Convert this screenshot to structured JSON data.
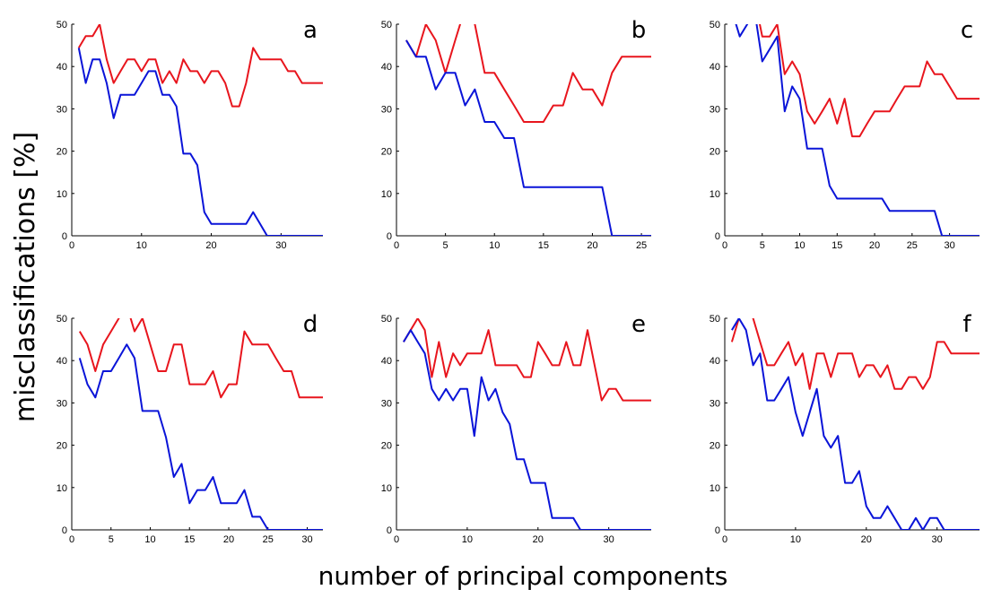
{
  "figure": {
    "xlabel": "number of principal components",
    "ylabel": "misclassifications [%]",
    "colors": {
      "red_series": "#e8151d",
      "blue_series": "#0a14d8"
    }
  },
  "chart_data": [
    {
      "type": "line",
      "label": "a",
      "xlim": [
        0,
        36
      ],
      "ylim": [
        0,
        50
      ],
      "xticks": [
        0,
        10,
        20,
        30
      ],
      "yticks": [
        0,
        10,
        20,
        30,
        40,
        50
      ],
      "grid": false,
      "series": [
        {
          "color": "#e8151d",
          "x": [
            1,
            2,
            3,
            4,
            5,
            6,
            7,
            8,
            9,
            10,
            11,
            12,
            13,
            14,
            15,
            16,
            17,
            18,
            19,
            20,
            21,
            22,
            23,
            24,
            25,
            26,
            27,
            28,
            29,
            30,
            31,
            32,
            33,
            34,
            35,
            36
          ],
          "y": [
            44.4,
            47.2,
            47.2,
            50,
            41.7,
            36.1,
            38.9,
            41.7,
            41.7,
            38.9,
            41.7,
            41.7,
            36.1,
            38.9,
            36.1,
            41.7,
            38.9,
            38.9,
            36.1,
            38.9,
            38.9,
            36.1,
            30.6,
            30.6,
            36.1,
            44.4,
            41.7,
            41.7,
            41.7,
            41.7,
            38.9,
            38.9,
            36.1,
            36.1,
            36.1,
            36.1
          ]
        },
        {
          "color": "#0a14d8",
          "x": [
            1,
            2,
            3,
            4,
            5,
            6,
            7,
            8,
            9,
            10,
            11,
            12,
            13,
            14,
            15,
            16,
            17,
            18,
            19,
            20,
            21,
            22,
            23,
            24,
            25,
            26,
            27,
            28,
            29,
            30,
            31,
            32,
            33,
            34,
            35,
            36
          ],
          "y": [
            44.4,
            36.1,
            41.7,
            41.7,
            36.1,
            27.8,
            33.3,
            33.3,
            33.3,
            36.1,
            38.9,
            38.9,
            33.3,
            33.3,
            30.6,
            19.4,
            19.4,
            16.7,
            5.6,
            2.8,
            2.8,
            2.8,
            2.8,
            2.8,
            2.8,
            5.6,
            2.8,
            0,
            0,
            0,
            0,
            0,
            0,
            0,
            0,
            0
          ]
        }
      ]
    },
    {
      "type": "line",
      "label": "b",
      "xlim": [
        0,
        26
      ],
      "ylim": [
        0,
        50
      ],
      "xticks": [
        0,
        5,
        10,
        15,
        20,
        25
      ],
      "yticks": [
        0,
        10,
        20,
        30,
        40,
        50
      ],
      "grid": false,
      "series": [
        {
          "color": "#e8151d",
          "x": [
            1,
            2,
            3,
            4,
            5,
            6,
            7,
            8,
            9,
            10,
            11,
            12,
            13,
            14,
            15,
            16,
            17,
            18,
            19,
            20,
            21,
            22,
            23,
            24,
            25,
            26
          ],
          "y": [
            46.2,
            42.3,
            50,
            46.2,
            38.5,
            46.2,
            53.8,
            50,
            38.5,
            38.5,
            34.6,
            30.8,
            26.9,
            26.9,
            26.9,
            30.8,
            30.8,
            38.5,
            34.6,
            34.6,
            30.8,
            38.5,
            42.3,
            42.3,
            42.3,
            42.3
          ]
        },
        {
          "color": "#0a14d8",
          "x": [
            1,
            2,
            3,
            4,
            5,
            6,
            7,
            8,
            9,
            10,
            11,
            12,
            13,
            14,
            15,
            16,
            17,
            18,
            19,
            20,
            21,
            22,
            23,
            24,
            25,
            26
          ],
          "y": [
            46.2,
            42.3,
            42.3,
            34.6,
            38.5,
            38.5,
            30.8,
            34.6,
            26.9,
            26.9,
            23.1,
            23.1,
            11.5,
            11.5,
            11.5,
            11.5,
            11.5,
            11.5,
            11.5,
            11.5,
            11.5,
            0,
            0,
            0,
            0,
            0
          ]
        }
      ]
    },
    {
      "type": "line",
      "label": "c",
      "xlim": [
        0,
        34
      ],
      "ylim": [
        0,
        50
      ],
      "xticks": [
        0,
        5,
        10,
        15,
        20,
        25,
        30
      ],
      "yticks": [
        0,
        10,
        20,
        30,
        40,
        50
      ],
      "grid": false,
      "series": [
        {
          "color": "#e8151d",
          "x": [
            1,
            2,
            3,
            4,
            5,
            6,
            7,
            8,
            9,
            10,
            11,
            12,
            13,
            14,
            15,
            16,
            17,
            18,
            19,
            20,
            21,
            22,
            23,
            24,
            25,
            26,
            27,
            28,
            29,
            30,
            31,
            32,
            33,
            34
          ],
          "y": [
            52.9,
            52.9,
            52.9,
            55.9,
            47.1,
            47.1,
            50,
            38.2,
            41.2,
            38.2,
            29.4,
            26.5,
            29.4,
            32.4,
            26.5,
            32.4,
            23.5,
            23.5,
            26.5,
            29.4,
            29.4,
            29.4,
            32.4,
            35.3,
            35.3,
            35.3,
            41.2,
            38.2,
            38.2,
            35.3,
            32.4,
            32.4,
            32.4,
            32.4
          ]
        },
        {
          "color": "#0a14d8",
          "x": [
            1,
            2,
            3,
            4,
            5,
            6,
            7,
            8,
            9,
            10,
            11,
            12,
            13,
            14,
            15,
            16,
            17,
            18,
            19,
            20,
            21,
            22,
            23,
            24,
            25,
            26,
            27,
            28,
            29,
            30,
            31,
            32,
            33,
            34
          ],
          "y": [
            52.9,
            47.1,
            50,
            52.9,
            41.2,
            44.1,
            47.1,
            29.4,
            35.3,
            32.4,
            20.6,
            20.6,
            20.6,
            11.8,
            8.8,
            8.8,
            8.8,
            8.8,
            8.8,
            8.8,
            8.8,
            5.9,
            5.9,
            5.9,
            5.9,
            5.9,
            5.9,
            5.9,
            0,
            0,
            0,
            0,
            0,
            0
          ]
        }
      ]
    },
    {
      "type": "line",
      "label": "d",
      "xlim": [
        0,
        32
      ],
      "ylim": [
        0,
        50
      ],
      "xticks": [
        0,
        5,
        10,
        15,
        20,
        25,
        30
      ],
      "yticks": [
        0,
        10,
        20,
        30,
        40,
        50
      ],
      "grid": false,
      "series": [
        {
          "color": "#e8151d",
          "x": [
            1,
            2,
            3,
            4,
            5,
            6,
            7,
            8,
            9,
            10,
            11,
            12,
            13,
            14,
            15,
            16,
            17,
            18,
            19,
            20,
            21,
            22,
            23,
            24,
            25,
            26,
            27,
            28,
            29,
            30,
            31,
            32
          ],
          "y": [
            46.9,
            43.8,
            37.5,
            43.8,
            46.9,
            50,
            53.1,
            46.9,
            50,
            43.8,
            37.5,
            37.5,
            43.8,
            43.8,
            34.4,
            34.4,
            34.4,
            37.5,
            31.3,
            34.4,
            34.4,
            46.9,
            43.8,
            43.8,
            43.8,
            40.6,
            37.5,
            37.5,
            31.3,
            31.3,
            31.3,
            31.3
          ]
        },
        {
          "color": "#0a14d8",
          "x": [
            1,
            2,
            3,
            4,
            5,
            6,
            7,
            8,
            9,
            10,
            11,
            12,
            13,
            14,
            15,
            16,
            17,
            18,
            19,
            20,
            21,
            22,
            23,
            24,
            25,
            26,
            27,
            28,
            29,
            30,
            31,
            32
          ],
          "y": [
            40.6,
            34.4,
            31.3,
            37.5,
            37.5,
            40.6,
            43.8,
            40.6,
            28.1,
            28.1,
            28.1,
            21.9,
            12.5,
            15.6,
            6.3,
            9.4,
            9.4,
            12.5,
            6.3,
            6.3,
            6.3,
            9.4,
            3.1,
            3.1,
            0,
            0,
            0,
            0,
            0,
            0,
            0,
            0
          ]
        }
      ]
    },
    {
      "type": "line",
      "label": "e",
      "xlim": [
        0,
        36
      ],
      "ylim": [
        0,
        50
      ],
      "xticks": [
        0,
        10,
        20,
        30
      ],
      "yticks": [
        0,
        10,
        20,
        30,
        40,
        50
      ],
      "grid": false,
      "series": [
        {
          "color": "#e8151d",
          "x": [
            1,
            2,
            3,
            4,
            5,
            6,
            7,
            8,
            9,
            10,
            11,
            12,
            13,
            14,
            15,
            16,
            17,
            18,
            19,
            20,
            21,
            22,
            23,
            24,
            25,
            26,
            27,
            28,
            29,
            30,
            31,
            32,
            33,
            34,
            35,
            36
          ],
          "y": [
            44.4,
            47.2,
            50,
            47.2,
            36.1,
            44.4,
            36.1,
            41.7,
            38.9,
            41.7,
            41.7,
            41.7,
            47.2,
            38.9,
            38.9,
            38.9,
            38.9,
            36.1,
            36.1,
            44.4,
            41.7,
            38.9,
            38.9,
            44.4,
            38.9,
            38.9,
            47.2,
            38.9,
            30.6,
            33.3,
            33.3,
            30.6,
            30.6,
            30.6,
            30.6,
            30.6
          ]
        },
        {
          "color": "#0a14d8",
          "x": [
            1,
            2,
            3,
            4,
            5,
            6,
            7,
            8,
            9,
            10,
            11,
            12,
            13,
            14,
            15,
            16,
            17,
            18,
            19,
            20,
            21,
            22,
            23,
            24,
            25,
            26,
            27,
            28,
            29,
            30,
            31,
            32,
            33,
            34,
            35,
            36
          ],
          "y": [
            44.4,
            47.2,
            44.4,
            41.7,
            33.3,
            30.6,
            33.3,
            30.6,
            33.3,
            33.3,
            22.2,
            36.1,
            30.6,
            33.3,
            27.8,
            25,
            16.7,
            16.7,
            11.1,
            11.1,
            11.1,
            2.8,
            2.8,
            2.8,
            2.8,
            0,
            0,
            0,
            0,
            0,
            0,
            0,
            0,
            0,
            0,
            0
          ]
        }
      ]
    },
    {
      "type": "line",
      "label": "f",
      "xlim": [
        0,
        36
      ],
      "ylim": [
        0,
        50
      ],
      "xticks": [
        0,
        10,
        20,
        30
      ],
      "yticks": [
        0,
        10,
        20,
        30,
        40,
        50
      ],
      "grid": false,
      "series": [
        {
          "color": "#e8151d",
          "x": [
            1,
            2,
            3,
            4,
            5,
            6,
            7,
            8,
            9,
            10,
            11,
            12,
            13,
            14,
            15,
            16,
            17,
            18,
            19,
            20,
            21,
            22,
            23,
            24,
            25,
            26,
            27,
            28,
            29,
            30,
            31,
            32,
            33,
            34,
            35,
            36
          ],
          "y": [
            44.4,
            50,
            52.8,
            50,
            44.4,
            38.9,
            38.9,
            41.7,
            44.4,
            38.9,
            41.7,
            33.3,
            41.7,
            41.7,
            36.1,
            41.7,
            41.7,
            41.7,
            36.1,
            38.9,
            38.9,
            36.1,
            38.9,
            33.3,
            33.3,
            36.1,
            36.1,
            33.3,
            36.1,
            44.4,
            44.4,
            41.7,
            41.7,
            41.7,
            41.7,
            41.7
          ]
        },
        {
          "color": "#0a14d8",
          "x": [
            1,
            2,
            3,
            4,
            5,
            6,
            7,
            8,
            9,
            10,
            11,
            12,
            13,
            14,
            15,
            16,
            17,
            18,
            19,
            20,
            21,
            22,
            23,
            24,
            25,
            26,
            27,
            28,
            29,
            30,
            31,
            32,
            33,
            34,
            35,
            36
          ],
          "y": [
            47.2,
            50,
            47.2,
            38.9,
            41.7,
            30.6,
            30.6,
            33.3,
            36.1,
            27.8,
            22.2,
            27.8,
            33.3,
            22.2,
            19.4,
            22.2,
            11.1,
            11.1,
            13.9,
            5.6,
            2.8,
            2.8,
            5.6,
            2.8,
            0,
            0,
            2.8,
            0,
            2.8,
            2.8,
            0,
            0,
            0,
            0,
            0,
            0
          ]
        }
      ]
    }
  ]
}
